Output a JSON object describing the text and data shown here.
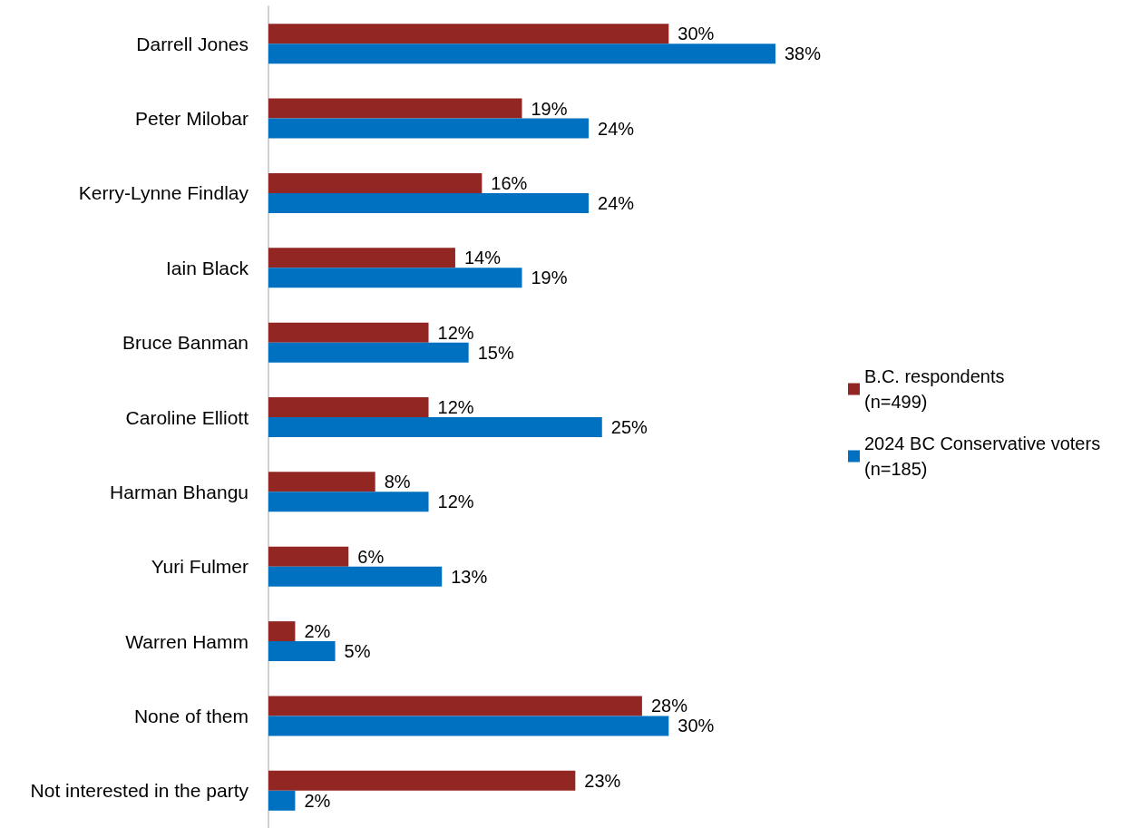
{
  "chart_data": {
    "type": "bar",
    "orientation": "horizontal",
    "categories": [
      "Darrell Jones",
      "Peter Milobar",
      "Kerry-Lynne Findlay",
      "Iain Black",
      "Bruce Banman",
      "Caroline Elliott",
      "Harman Bhangu",
      "Yuri Fulmer",
      "Warren Hamm",
      "None of them",
      "Not interested in the party"
    ],
    "series": [
      {
        "name": "B.C. respondents\n(n=499)",
        "color": "#922623",
        "values": [
          30,
          19,
          16,
          14,
          12,
          12,
          8,
          6,
          2,
          28,
          23
        ],
        "value_labels": [
          "30%",
          "19%",
          "16%",
          "14%",
          "12%",
          "12%",
          "8%",
          "6%",
          "2%",
          "28%",
          "23%"
        ]
      },
      {
        "name": "2024 BC Conservative voters\n(n=185)",
        "color": "#0070c0",
        "values": [
          38,
          24,
          24,
          19,
          15,
          25,
          12,
          13,
          5,
          30,
          2
        ],
        "value_labels": [
          "38%",
          "24%",
          "24%",
          "19%",
          "15%",
          "25%",
          "12%",
          "13%",
          "5%",
          "30%",
          "2%"
        ]
      }
    ],
    "legend": "right",
    "grid": false,
    "tick_labels": "y"
  }
}
